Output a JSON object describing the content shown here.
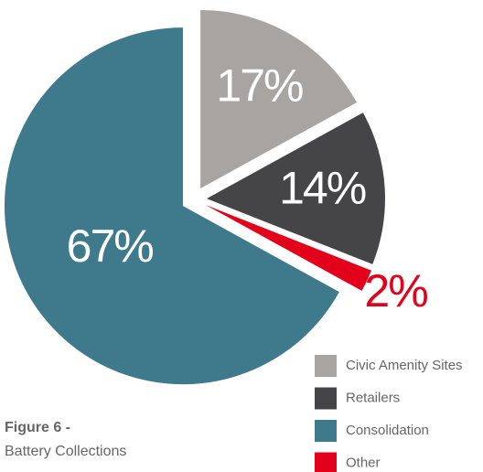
{
  "chart_data": {
    "type": "pie",
    "title": "Figure 6 -",
    "subtitle": "Battery Collections",
    "categories": [
      "Civic Amenity Sites",
      "Retailers",
      "Other",
      "Consolidation"
    ],
    "values": [
      17,
      14,
      2,
      67
    ],
    "value_labels": [
      "17%",
      "14%",
      "2%",
      "67%"
    ],
    "colors": [
      "#a8a4a2",
      "#454547",
      "#e2001a",
      "#3f7a8c"
    ],
    "legend_order": [
      0,
      1,
      3,
      2
    ],
    "legend": "bottom-right"
  }
}
